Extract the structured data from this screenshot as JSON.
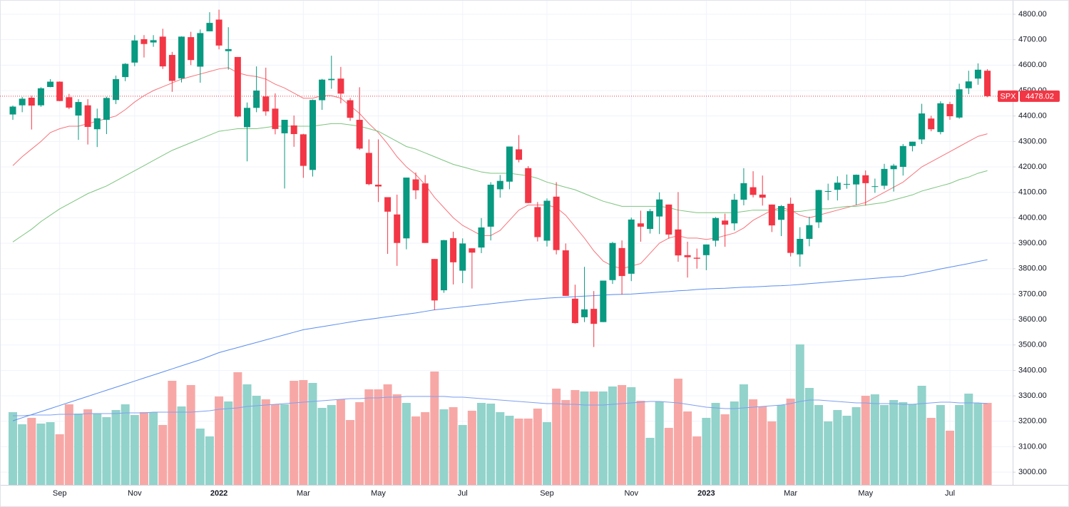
{
  "chart_data": {
    "type": "candlestick",
    "symbol": "SPX",
    "categories": [
      null,
      null,
      null,
      null,
      null,
      "Sep",
      null,
      null,
      null,
      null,
      null,
      null,
      null,
      "Nov",
      null,
      null,
      null,
      null,
      null,
      null,
      null,
      null,
      "2022",
      null,
      null,
      null,
      null,
      null,
      null,
      null,
      null,
      "Mar",
      null,
      null,
      null,
      null,
      null,
      null,
      null,
      "May",
      null,
      null,
      null,
      null,
      null,
      null,
      null,
      null,
      "Jul",
      null,
      null,
      null,
      null,
      null,
      null,
      null,
      null,
      "Sep",
      null,
      null,
      null,
      null,
      null,
      null,
      null,
      null,
      "Nov",
      null,
      null,
      null,
      null,
      null,
      null,
      null,
      "2023",
      null,
      null,
      null,
      null,
      null,
      null,
      null,
      null,
      "Mar",
      null,
      null,
      null,
      null,
      null,
      null,
      null,
      "May",
      null,
      null,
      null,
      null,
      null,
      null,
      null,
      null,
      "Jul",
      null,
      null,
      null,
      null
    ],
    "open": [
      4406,
      4442,
      4472,
      4442,
      4514,
      4535,
      4474,
      4402,
      4442,
      4348,
      4385,
      4463,
      4553,
      4610,
      4702,
      4689,
      4712,
      4640,
      4548,
      4710,
      4594,
      4733,
      4779,
      4655,
      4632,
      4356,
      4432,
      4477,
      4429,
      4332,
      4363,
      4328,
      4188,
      4462,
      4541,
      4547,
      4462,
      4385,
      4255,
      4130,
      4081,
      4013,
      3919,
      4151,
      4135,
      3838,
      3715,
      3920,
      3792,
      3880,
      3883,
      3965,
      4112,
      4142,
      4269,
      4195,
      4042,
      3910,
      4083,
      3872,
      3682,
      3609,
      3642,
      3590,
      3755,
      3881,
      3780,
      3978,
      3956,
      4005,
      4052,
      3954,
      3853,
      3843,
      3853,
      3910,
      3989,
      3978,
      4071,
      4120,
      4091,
      4052,
      3992,
      4055,
      3856,
      3917,
      3982,
      4102,
      4110,
      4132,
      4131,
      4167,
      4124,
      4126,
      4191,
      4200,
      4282,
      4308,
      4390,
      4337,
      4447,
      4394,
      4509,
      4547,
      4578
    ],
    "high": [
      4441,
      4475,
      4480,
      4513,
      4545,
      4536,
      4487,
      4466,
      4466,
      4429,
      4476,
      4559,
      4608,
      4718,
      4718,
      4718,
      4743,
      4652,
      4713,
      4731,
      4740,
      4808,
      4818,
      4749,
      4632,
      4453,
      4595,
      4590,
      4489,
      4385,
      4402,
      4330,
      4465,
      4546,
      4637,
      4593,
      4471,
      4513,
      4308,
      4308,
      4081,
      4091,
      4158,
      4178,
      4168,
      3838,
      3913,
      3945,
      3919,
      3880,
      3999,
      4140,
      4168,
      4280,
      4325,
      4203,
      4062,
      4076,
      4140,
      3899,
      3737,
      3807,
      3712,
      3752,
      3905,
      3911,
      4001,
      4028,
      4034,
      4100,
      4052,
      4101,
      3906,
      3879,
      3895,
      4003,
      4016,
      4094,
      4195,
      4183,
      4166,
      4052,
      4050,
      4079,
      3963,
      4004,
      4110,
      4134,
      4163,
      4170,
      4170,
      4186,
      4154,
      4212,
      4212,
      4290,
      4299,
      4448,
      4401,
      4458,
      4456,
      4527,
      4578,
      4607,
      4584
    ],
    "low": [
      4385,
      4415,
      4347,
      4436,
      4513,
      4458,
      4427,
      4306,
      4288,
      4278,
      4329,
      4447,
      4537,
      4596,
      4630,
      4672,
      4585,
      4495,
      4532,
      4600,
      4531,
      4733,
      4662,
      4582,
      4395,
      4222,
      4415,
      4401,
      4328,
      4115,
      4279,
      4157,
      4162,
      4424,
      4507,
      4450,
      4381,
      4267,
      4128,
      4062,
      3858,
      3811,
      3876,
      4073,
      3901,
      3637,
      3705,
      3738,
      3743,
      3722,
      3861,
      3911,
      4079,
      4112,
      4218,
      4057,
      3907,
      3887,
      3856,
      3693,
      3584,
      3590,
      3492,
      3590,
      3740,
      3698,
      3751,
      3906,
      3938,
      3936,
      3918,
      3827,
      3765,
      3800,
      3794,
      3887,
      3886,
      3950,
      4049,
      4080,
      4048,
      3944,
      3928,
      3848,
      3808,
      3888,
      3960,
      4069,
      4068,
      4114,
      4050,
      4048,
      4098,
      4112,
      4103,
      4166,
      4261,
      4290,
      4340,
      4328,
      4385,
      4389,
      4486,
      4523,
      4474
    ],
    "close": [
      4437,
      4468,
      4441,
      4509,
      4535,
      4459,
      4433,
      4455,
      4357,
      4391,
      4471,
      4545,
      4605,
      4697,
      4683,
      4698,
      4595,
      4538,
      4712,
      4620,
      4726,
      4766,
      4677,
      4663,
      4398,
      4432,
      4500,
      4418,
      4349,
      4385,
      4329,
      4204,
      4463,
      4543,
      4546,
      4488,
      4393,
      4272,
      4132,
      4123,
      4024,
      3901,
      4158,
      4108,
      3901,
      3675,
      3912,
      3825,
      3899,
      3863,
      3962,
      4130,
      4145,
      4280,
      4228,
      4058,
      3924,
      4067,
      3873,
      3693,
      3586,
      3640,
      3583,
      3753,
      3901,
      3771,
      3993,
      3965,
      4026,
      4072,
      3934,
      3852,
      3845,
      3839,
      3895,
      3999,
      3973,
      4071,
      4136,
      4090,
      4079,
      3970,
      4046,
      3862,
      3917,
      3971,
      4109,
      4105,
      4138,
      4133,
      4169,
      4136,
      4124,
      4192,
      4205,
      4282,
      4299,
      4410,
      4348,
      4450,
      4399,
      4505,
      4536,
      4582,
      4478.02
    ],
    "up_color": "#089981",
    "down_color": "#f23645",
    "moving_averages": [
      {
        "color": "#f7737a",
        "values": [
          4205,
          4240,
          4270,
          4300,
          4335,
          4350,
          4360,
          4360,
          4370,
          4380,
          4390,
          4400,
          4425,
          4455,
          4480,
          4500,
          4515,
          4530,
          4545,
          4555,
          4565,
          4575,
          4585,
          4590,
          4570,
          4560,
          4555,
          4545,
          4525,
          4510,
          4490,
          4470,
          4470,
          4480,
          4480,
          4470,
          4440,
          4410,
          4370,
          4335,
          4290,
          4240,
          4200,
          4170,
          4130,
          4080,
          4040,
          4000,
          3970,
          3950,
          3930,
          3930,
          3950,
          3990,
          4030,
          4050,
          4050,
          4050,
          4040,
          4010,
          3965,
          3920,
          3870,
          3830,
          3810,
          3800,
          3810,
          3820,
          3860,
          3900,
          3920,
          3930,
          3920,
          3920,
          3915,
          3920,
          3930,
          3940,
          3960,
          3990,
          4010,
          4030,
          4040,
          4030,
          4010,
          4000,
          4010,
          4020,
          4030,
          4040,
          4050,
          4060,
          4080,
          4100,
          4120,
          4140,
          4170,
          4200,
          4220,
          4240,
          4260,
          4280,
          4300,
          4320,
          4330
        ]
      },
      {
        "color": "#7dc47f",
        "values": [
          3905,
          3930,
          3955,
          3985,
          4010,
          4035,
          4055,
          4075,
          4095,
          4110,
          4125,
          4145,
          4165,
          4185,
          4205,
          4225,
          4245,
          4265,
          4280,
          4295,
          4310,
          4325,
          4340,
          4345,
          4350,
          4350,
          4350,
          4355,
          4360,
          4360,
          4360,
          4360,
          4360,
          4365,
          4370,
          4370,
          4365,
          4360,
          4350,
          4340,
          4320,
          4300,
          4280,
          4270,
          4255,
          4240,
          4225,
          4210,
          4200,
          4190,
          4180,
          4175,
          4175,
          4175,
          4170,
          4165,
          4155,
          4140,
          4130,
          4120,
          4110,
          4095,
          4080,
          4065,
          4055,
          4045,
          4045,
          4045,
          4045,
          4045,
          4040,
          4030,
          4025,
          4020,
          4020,
          4020,
          4020,
          4020,
          4025,
          4030,
          4030,
          4030,
          4030,
          4025,
          4025,
          4030,
          4035,
          4035,
          4040,
          4045,
          4045,
          4050,
          4055,
          4060,
          4070,
          4080,
          4090,
          4105,
          4115,
          4125,
          4135,
          4150,
          4160,
          4175,
          4185
        ]
      },
      {
        "color": "#5b8def",
        "values": [
          3202,
          3214,
          3226,
          3238,
          3250,
          3262,
          3274,
          3286,
          3298,
          3310,
          3322,
          3334,
          3346,
          3358,
          3370,
          3382,
          3394,
          3406,
          3418,
          3430,
          3442,
          3456,
          3470,
          3480,
          3490,
          3500,
          3510,
          3520,
          3530,
          3540,
          3550,
          3560,
          3566,
          3572,
          3578,
          3584,
          3590,
          3596,
          3601,
          3606,
          3611,
          3616,
          3621,
          3626,
          3632,
          3638,
          3642,
          3646,
          3650,
          3654,
          3658,
          3662,
          3666,
          3670,
          3674,
          3678,
          3681,
          3684,
          3686,
          3688,
          3690,
          3692,
          3694,
          3696,
          3698,
          3699,
          3700,
          3703,
          3705,
          3708,
          3710,
          3713,
          3715,
          3718,
          3720,
          3722,
          3723,
          3725,
          3727,
          3728,
          3730,
          3732,
          3733,
          3735,
          3738,
          3741,
          3744,
          3747,
          3750,
          3753,
          3756,
          3759,
          3762,
          3765,
          3768,
          3770,
          3777,
          3784,
          3791,
          3799,
          3806,
          3813,
          3820,
          3828,
          3835
        ]
      }
    ],
    "volume": {
      "up_color": "#92d3cb",
      "down_color": "#f7a8a6",
      "values": [
        102,
        85,
        94,
        86,
        88,
        71,
        113,
        100,
        106,
        100,
        95,
        105,
        113,
        98,
        102,
        102,
        84,
        146,
        110,
        140,
        79,
        68,
        124,
        117,
        158,
        141,
        125,
        120,
        113,
        113,
        146,
        147,
        143,
        108,
        112,
        120,
        91,
        116,
        134,
        134,
        141,
        127,
        115,
        96,
        102,
        159,
        106,
        109,
        84,
        104,
        115,
        114,
        102,
        97,
        93,
        93,
        107,
        88,
        135,
        119,
        133,
        131,
        131,
        131,
        138,
        140,
        137,
        118,
        66,
        117,
        80,
        149,
        103,
        68,
        94,
        115,
        99,
        117,
        141,
        120,
        110,
        89,
        112,
        121,
        197,
        136,
        112,
        89,
        105,
        97,
        109,
        125,
        127,
        112,
        119,
        116,
        113,
        139,
        94,
        112,
        76,
        112,
        128,
        115,
        115
      ],
      "ma": {
        "color": "#7f9ff0",
        "values": [
          97,
          97,
          98,
          98,
          98,
          99,
          99,
          99,
          100,
          100,
          100,
          100,
          101,
          101,
          101,
          102,
          102,
          102,
          102,
          102,
          103,
          104,
          106,
          107,
          108,
          110,
          111,
          112,
          113,
          114,
          115,
          116,
          117,
          118,
          119,
          120,
          121,
          121,
          122,
          122,
          123,
          123,
          124,
          124,
          124,
          124,
          124,
          123,
          123,
          122,
          121,
          120,
          119,
          118,
          117,
          116,
          115,
          114,
          114,
          113,
          113,
          112,
          112,
          112,
          113,
          114,
          115,
          116,
          117,
          117,
          116,
          115,
          113,
          111,
          109,
          108,
          107,
          107,
          108,
          109,
          110,
          111,
          112,
          114,
          117,
          119,
          119,
          118,
          117,
          116,
          115,
          115,
          114,
          114,
          114,
          113,
          113,
          114,
          115,
          116,
          116,
          115,
          115,
          115,
          114
        ]
      }
    },
    "ylim": [
      2950,
      4856
    ],
    "yticks": [
      {
        "value": 3000,
        "label": "3000.00"
      },
      {
        "value": 3100,
        "label": "3100.00"
      },
      {
        "value": 3200,
        "label": "3200.00"
      },
      {
        "value": 3300,
        "label": "3300.00"
      },
      {
        "value": 3400,
        "label": "3400.00"
      },
      {
        "value": 3500,
        "label": "3500.00"
      },
      {
        "value": 3600,
        "label": "3600.00"
      },
      {
        "value": 3700,
        "label": "3700.00"
      },
      {
        "value": 3800,
        "label": "3800.00"
      },
      {
        "value": 3900,
        "label": "3900.00"
      },
      {
        "value": 4000,
        "label": "4000.00"
      },
      {
        "value": 4100,
        "label": "4100.00"
      },
      {
        "value": 4200,
        "label": "4200.00"
      },
      {
        "value": 4300,
        "label": "4300.00"
      },
      {
        "value": 4400,
        "label": "4400.00"
      },
      {
        "value": 4500,
        "label": "4500.00"
      },
      {
        "value": 4600,
        "label": "4600.00"
      },
      {
        "value": 4700,
        "label": "4700.00"
      },
      {
        "value": 4800,
        "label": "4800.00"
      }
    ],
    "grid": true
  }
}
